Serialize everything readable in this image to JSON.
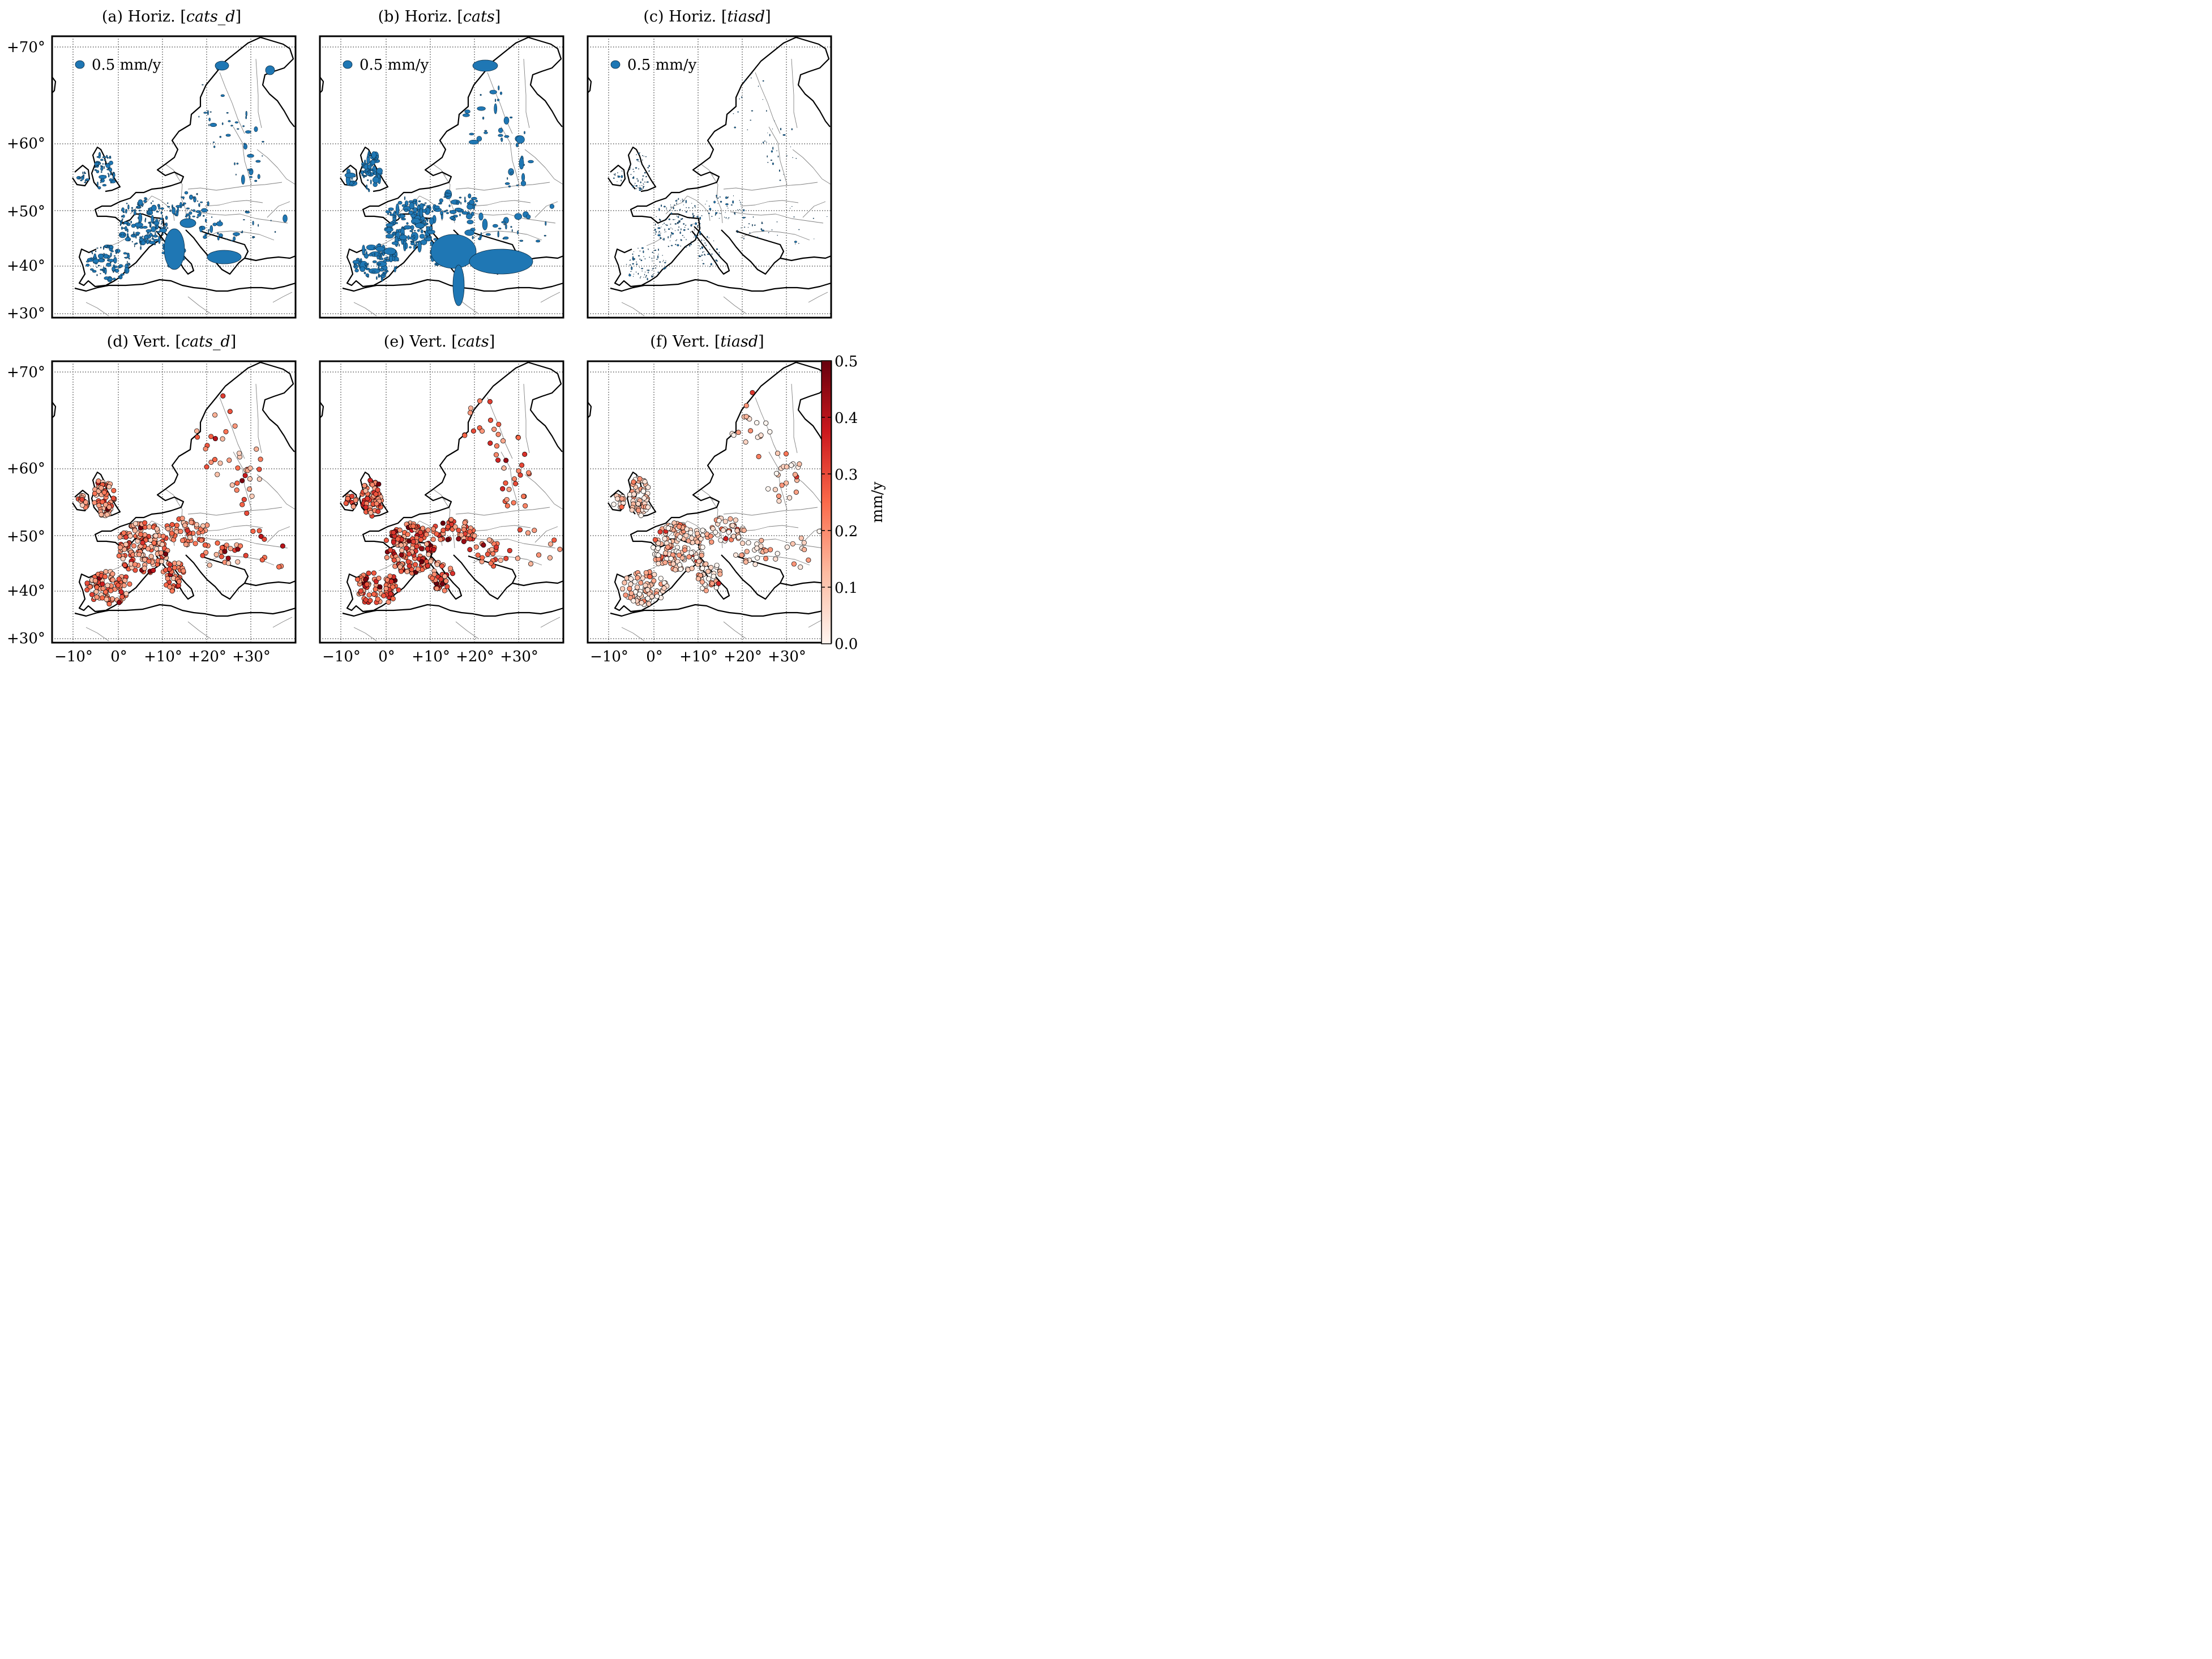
{
  "figure": {
    "panels": [
      {
        "id": "a",
        "kind": "horizontal",
        "label": "(a) Horiz. ",
        "model": "cats_d",
        "legend_text": "0.5 mm/y"
      },
      {
        "id": "b",
        "kind": "horizontal",
        "label": "(b) Horiz. ",
        "model": "cats",
        "legend_text": "0.5 mm/y"
      },
      {
        "id": "c",
        "kind": "horizontal",
        "label": "(c) Horiz. ",
        "model": "tiasd",
        "legend_text": "0.5 mm/y"
      },
      {
        "id": "d",
        "kind": "vertical",
        "label": "(d) Vert. ",
        "model": "cats_d"
      },
      {
        "id": "e",
        "kind": "vertical",
        "label": "(e) Vert. ",
        "model": "cats"
      },
      {
        "id": "f",
        "kind": "vertical",
        "label": "(f) Vert. ",
        "model": "tiasd"
      }
    ],
    "lat_labels": [
      "+70°",
      "+60°",
      "+50°",
      "+40°",
      "+30°"
    ],
    "lon_labels": [
      "−10°",
      "0°",
      "+10°",
      "+20°",
      "+30°"
    ],
    "colorbar": {
      "label": "mm/y",
      "ticks": [
        "0.5",
        "0.4",
        "0.3",
        "0.2",
        "0.1",
        "0.0"
      ],
      "range": [
        0.0,
        0.5
      ],
      "colormap": "Reds",
      "colors": [
        "#fff5f0",
        "#fcbba1",
        "#fb6a4a",
        "#cb181d",
        "#67000d"
      ]
    },
    "colors": {
      "ellipse_fill": "#1f77b4",
      "coastline": "#000000",
      "border": "#808080"
    }
  }
}
